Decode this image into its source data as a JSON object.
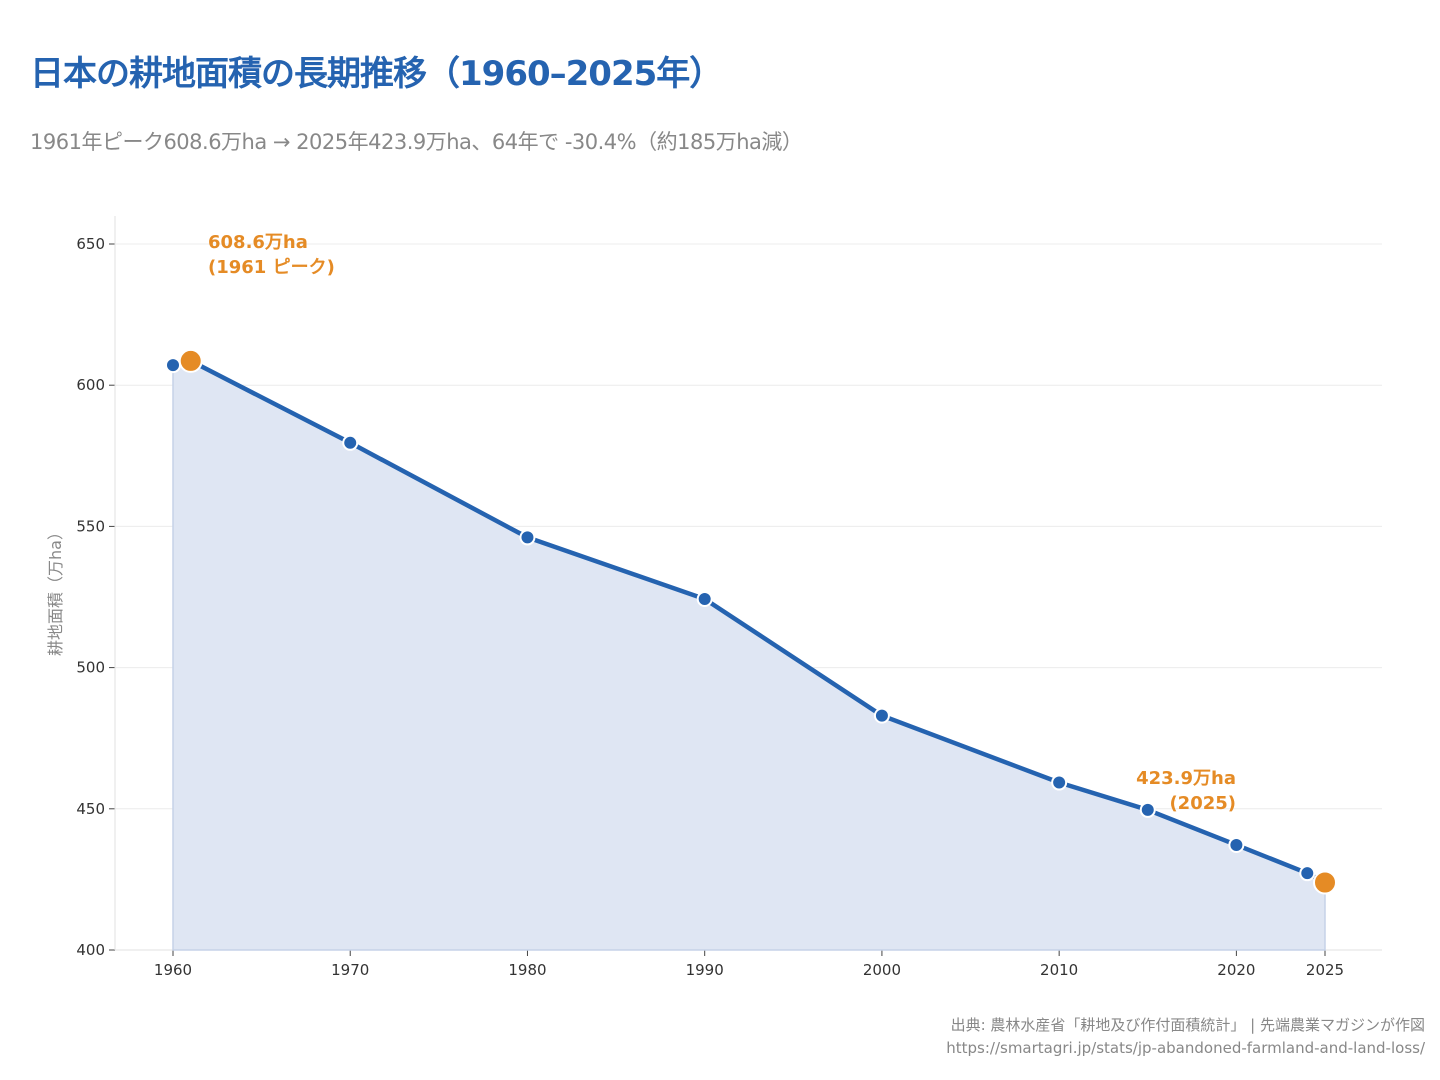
{
  "title": "日本の耕地面積の長期推移（1960–2025年）",
  "subtitle": "1961年ピーク608.6万ha → 2025年423.9万ha、64年で -30.4%（約185万ha減）",
  "source": "出典: 農林水産省「耕地及び作付面積統計」 | 先端農業マガジンが作図",
  "url": "https://smartagri.jp/stats/jp-abandoned-farmland-and-land-loss/",
  "colors": {
    "line": "#2563b0",
    "fill": "#dfe6f3",
    "highlight": "#e58b25",
    "grid": "#ececec"
  },
  "chart_data": {
    "type": "area",
    "title": "",
    "xlabel": "",
    "ylabel": "耕地面積（万ha）",
    "ylim": [
      400,
      660
    ],
    "xlim": [
      1956.8,
      2028.2
    ],
    "grid": "horizontal",
    "yticks": [
      400,
      450,
      500,
      550,
      600,
      650
    ],
    "xticks": [
      1960,
      1970,
      1980,
      1990,
      2000,
      2010,
      2020,
      2025
    ],
    "series": [
      {
        "x": [
          1960,
          1961,
          1970,
          1980,
          1990,
          2000,
          2010,
          2015,
          2020,
          2024,
          2025
        ],
        "values": [
          607.1,
          608.6,
          579.6,
          546.1,
          524.3,
          483.0,
          459.3,
          449.6,
          437.2,
          427.2,
          423.9
        ]
      }
    ],
    "highlights": [
      {
        "x": 1961,
        "y": 608.6,
        "label": [
          "608.6万ha",
          "(1961 ピーク)"
        ]
      },
      {
        "x": 2025,
        "y": 423.9,
        "label": [
          "423.9万ha",
          "(2025)"
        ]
      }
    ]
  }
}
